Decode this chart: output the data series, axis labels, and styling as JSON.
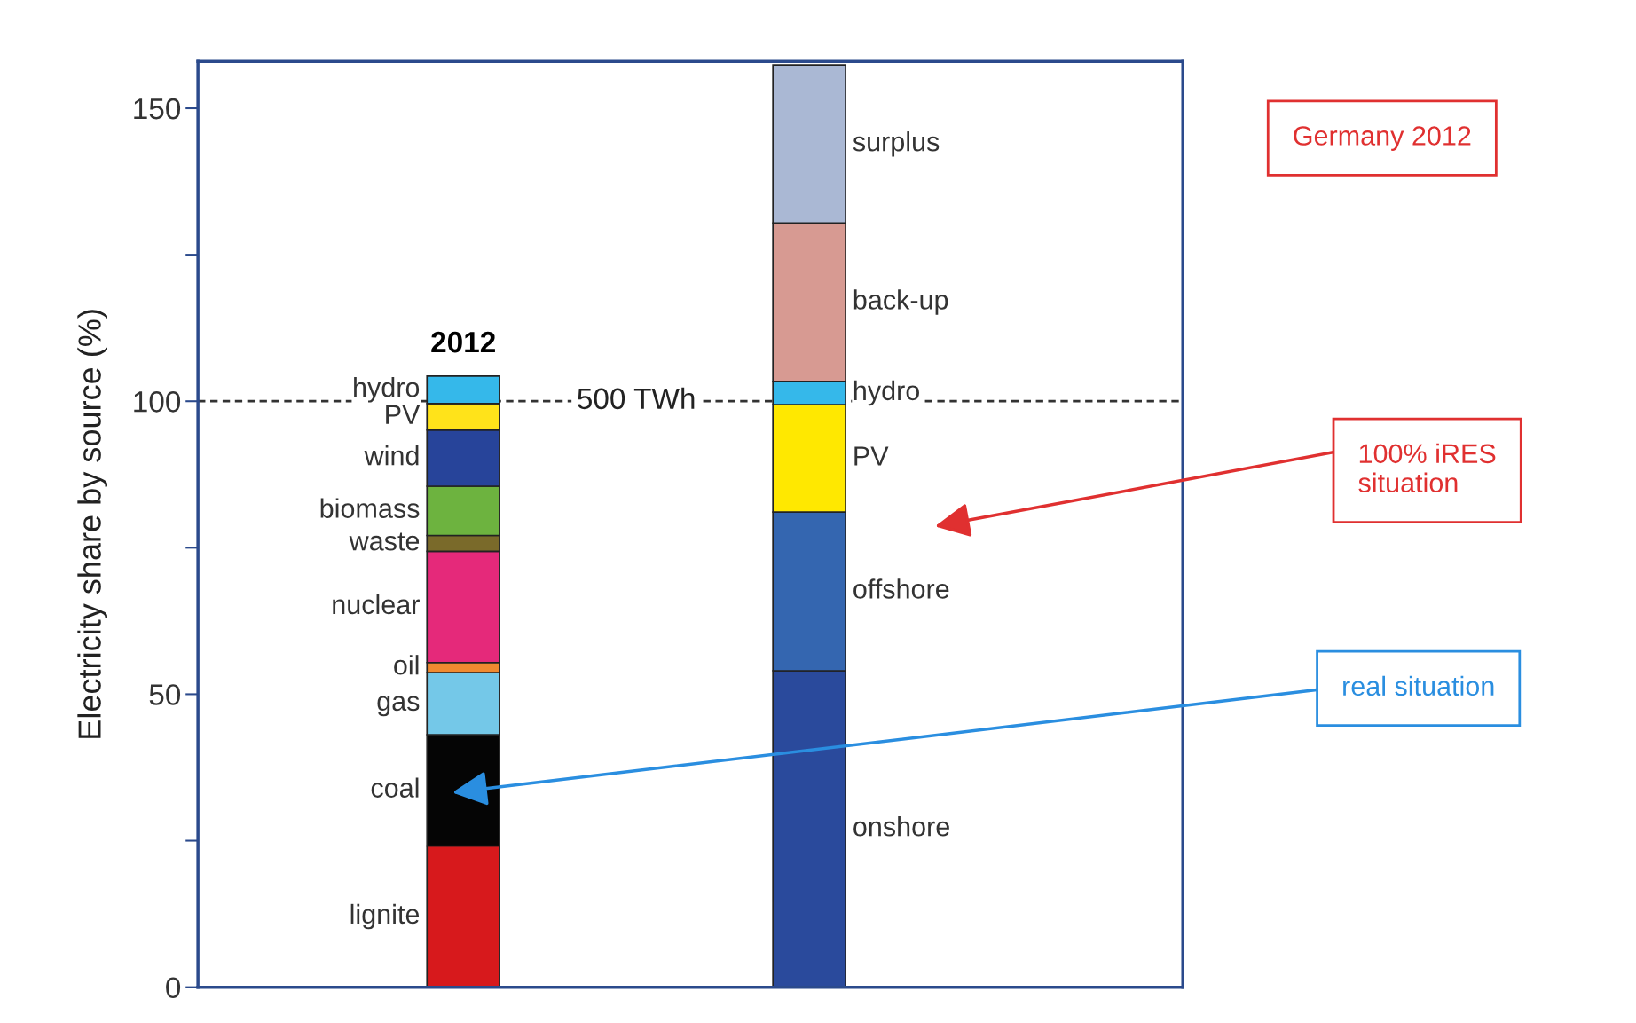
{
  "chart_data": {
    "type": "bar",
    "stacked": true,
    "ylabel": "Electricity share by source (%)",
    "categories": [
      "2012",
      null
    ],
    "series": [
      {
        "name": "lignite",
        "color": "#d7191c",
        "values": [
          24.1,
          null
        ]
      },
      {
        "name": "coal",
        "color": "#050505",
        "values": [
          19.0,
          null
        ]
      },
      {
        "name": "gas",
        "color": "#74c8e8",
        "values": [
          10.6,
          null
        ]
      },
      {
        "name": "oil",
        "color": "#f08a30",
        "values": [
          1.7,
          null
        ]
      },
      {
        "name": "nuclear",
        "color": "#e5297a",
        "values": [
          19.0,
          null
        ]
      },
      {
        "name": "waste",
        "color": "#7a6a2a",
        "values": [
          2.7,
          null
        ]
      },
      {
        "name": "biomass",
        "color": "#6db33f",
        "values": [
          8.4,
          null
        ]
      },
      {
        "name": "wind",
        "color": "#27449a",
        "values": [
          9.6,
          null
        ]
      },
      {
        "name": "PV",
        "color": "#ffe31a",
        "values": [
          4.5,
          null
        ]
      },
      {
        "name": "hydro",
        "color": "#35b8ea",
        "values": [
          4.7,
          null
        ]
      },
      {
        "name": "onshore",
        "color": "#2a4a9c",
        "values": [
          null,
          54.0
        ]
      },
      {
        "name": "offshore",
        "color": "#3466b0",
        "values": [
          null,
          27.1
        ]
      },
      {
        "name": "PV",
        "color": "#ffe800",
        "values": [
          null,
          18.3
        ]
      },
      {
        "name": "hydro",
        "color": "#35b8ea",
        "values": [
          null,
          4.0
        ]
      },
      {
        "name": "back-up",
        "color": "#d79a92",
        "values": [
          null,
          27.0
        ]
      },
      {
        "name": "surplus",
        "color": "#aab8d4",
        "values": [
          null,
          27.0
        ]
      }
    ],
    "ylim": [
      0,
      158
    ],
    "yticks": [
      0,
      {
        "value": 25,
        "label": null
      },
      50,
      {
        "value": 75,
        "label": null
      },
      100,
      {
        "value": 125,
        "label": null
      },
      150
    ],
    "ref_lines": [
      {
        "axis": "y",
        "value": 100,
        "label": "500 TWh",
        "line_style": "dashed",
        "color": "#333333"
      }
    ],
    "annotations": [
      "Germany 2012",
      "100% iRES\nsituation",
      "real situation"
    ],
    "tick_labels": "y",
    "legend": false,
    "grid": false
  }
}
